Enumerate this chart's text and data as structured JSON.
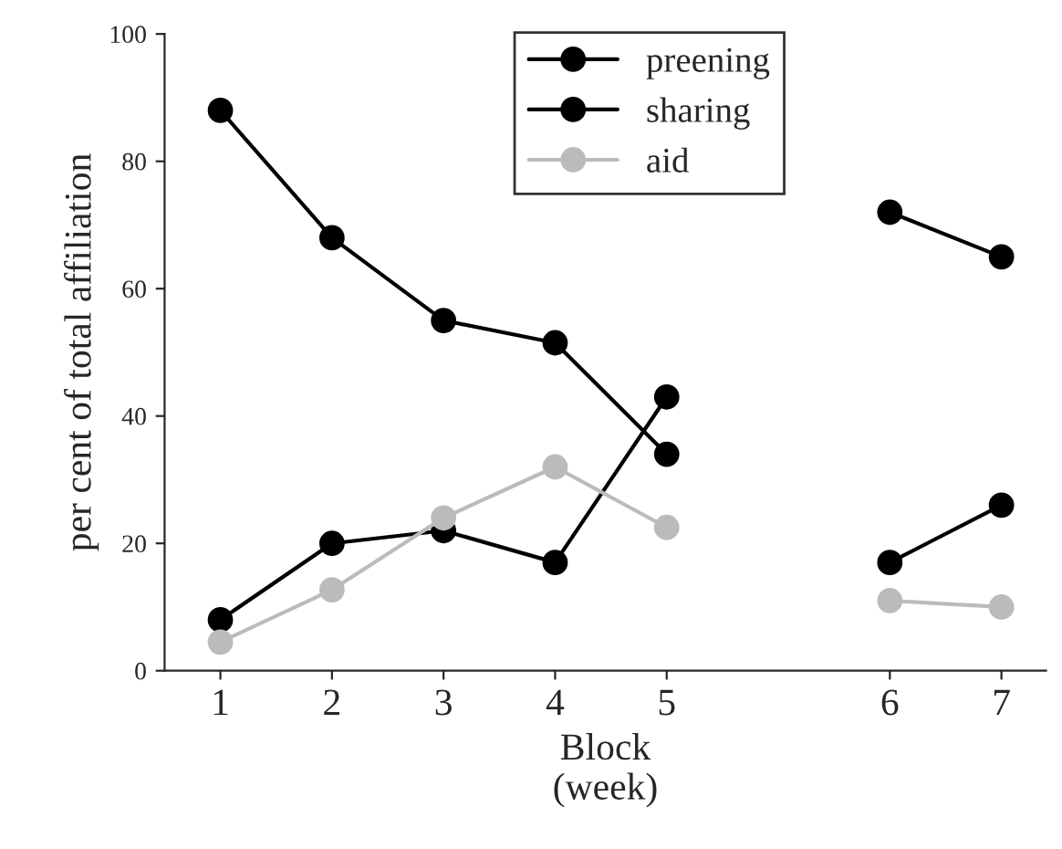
{
  "chart_data": {
    "type": "line",
    "xlabel": "Block\n(week)",
    "ylabel": "per cent of total affiliation",
    "categories": [
      "1",
      "2",
      "3",
      "4",
      "5",
      null,
      "6",
      "7"
    ],
    "series": [
      {
        "name": "preening",
        "color": "#000000",
        "values": [
          8,
          20,
          22,
          17,
          43,
          null,
          72,
          65
        ]
      },
      {
        "name": "sharing",
        "color": "#000000",
        "values": [
          88,
          68,
          55,
          51.5,
          34,
          null,
          17,
          26
        ]
      },
      {
        "name": "aid",
        "color": "#bbbbbb",
        "values": [
          4.5,
          12.7,
          24,
          32,
          22.5,
          null,
          11,
          10
        ]
      }
    ],
    "ylim": [
      0,
      100
    ],
    "yticks": [
      0,
      20,
      40,
      60,
      80,
      100
    ],
    "grid": false,
    "legend": "top",
    "marker": "circle",
    "line_style": "solid"
  }
}
